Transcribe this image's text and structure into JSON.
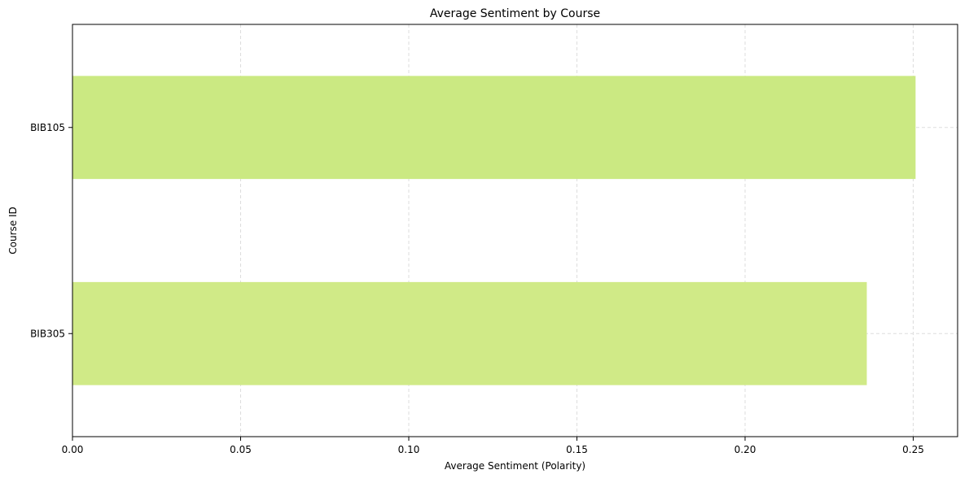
{
  "chart_data": {
    "type": "bar",
    "orientation": "horizontal",
    "title": "Average Sentiment by Course",
    "xlabel": "Average Sentiment (Polarity)",
    "ylabel": "Course ID",
    "categories": [
      "BIB105",
      "BIB305"
    ],
    "values": [
      0.2507,
      0.2362
    ],
    "xlim": [
      0,
      0.2632
    ],
    "xticks": [
      0.0,
      0.05,
      0.1,
      0.15,
      0.2,
      0.25
    ],
    "xtick_labels": [
      "0.00",
      "0.05",
      "0.10",
      "0.15",
      "0.20",
      "0.25"
    ],
    "grid": true,
    "grid_style": "dashed",
    "legend": "none",
    "colors": {
      "BIB105": "#cbe982",
      "BIB305": "#d0ea87",
      "grid": "#dddddd",
      "axis": "#000000"
    }
  }
}
